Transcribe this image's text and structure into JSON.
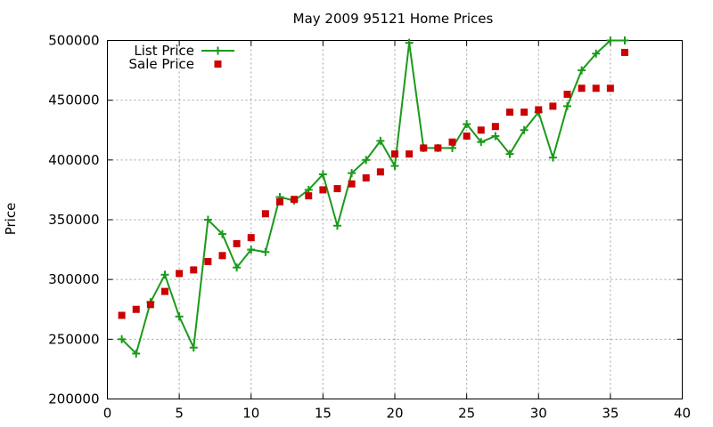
{
  "chart_data": {
    "type": "line",
    "title": "May 2009 95121 Home Prices",
    "xlabel": "",
    "ylabel": "Price",
    "xlim": [
      0,
      40
    ],
    "ylim": [
      200000,
      500000
    ],
    "x_ticks": [
      0,
      5,
      10,
      15,
      20,
      25,
      30,
      35,
      40
    ],
    "y_ticks": [
      200000,
      250000,
      300000,
      350000,
      400000,
      450000,
      500000
    ],
    "grid": true,
    "legend_position": "top-left",
    "series": [
      {
        "name": "List Price",
        "style": "linespoints",
        "marker": "plus",
        "color": "#1a9a1a",
        "x": [
          1,
          2,
          3,
          4,
          5,
          6,
          7,
          8,
          9,
          10,
          11,
          12,
          13,
          14,
          15,
          16,
          17,
          18,
          19,
          20,
          21,
          22,
          23,
          24,
          25,
          26,
          27,
          28,
          29,
          30,
          31,
          32,
          33,
          34,
          35,
          36
        ],
        "y": [
          250000,
          238000,
          281000,
          304000,
          269000,
          243000,
          350000,
          338000,
          310000,
          325000,
          323000,
          369000,
          366000,
          375000,
          388000,
          345000,
          389000,
          400000,
          416000,
          395000,
          498000,
          410000,
          410000,
          410000,
          430000,
          415000,
          420000,
          405000,
          425000,
          440000,
          402000,
          445000,
          475000,
          489000,
          500000,
          500000
        ]
      },
      {
        "name": "Sale Price",
        "style": "points",
        "marker": "square",
        "color": "#cc0000",
        "x": [
          1,
          2,
          3,
          4,
          5,
          6,
          7,
          8,
          9,
          10,
          11,
          12,
          13,
          14,
          15,
          16,
          17,
          18,
          19,
          20,
          21,
          22,
          23,
          24,
          25,
          26,
          27,
          28,
          29,
          30,
          31,
          32,
          33,
          34,
          35,
          36
        ],
        "y": [
          270000,
          275000,
          279000,
          290000,
          305000,
          308000,
          315000,
          320000,
          330000,
          335000,
          355000,
          365000,
          367000,
          370000,
          375000,
          376000,
          380000,
          385000,
          390000,
          405000,
          405000,
          410000,
          410000,
          415000,
          420000,
          425000,
          428000,
          440000,
          440000,
          442000,
          445000,
          455000,
          460000,
          460000,
          460000,
          490000
        ]
      }
    ]
  }
}
